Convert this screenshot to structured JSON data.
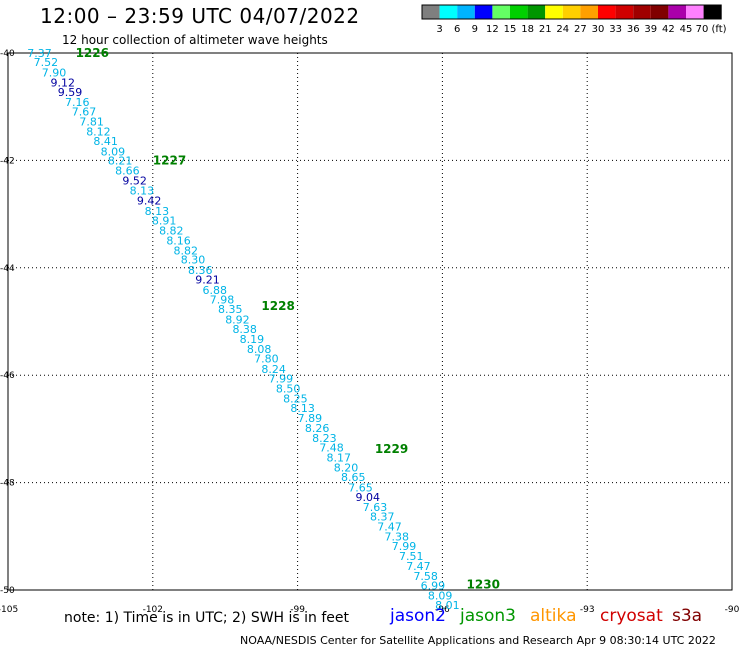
{
  "header": {
    "title": "12:00 – 23:59 UTC 04/07/2022",
    "subtitle": "12 hour collection of altimeter wave heights"
  },
  "colorbar": {
    "labels": [
      "3",
      "6",
      "9",
      "12",
      "15",
      "18",
      "21",
      "24",
      "27",
      "30",
      "33",
      "36",
      "39",
      "42",
      "45",
      "70 (ft)"
    ],
    "colors": [
      "#7f7f7f",
      "#00ffff",
      "#00b4ff",
      "#0000ff",
      "#64ff64",
      "#00d000",
      "#009600",
      "#ffff00",
      "#ffd000",
      "#ffa000",
      "#ff0000",
      "#d00000",
      "#a00000",
      "#800000",
      "#aa00aa",
      "#ff80ff",
      "#000000"
    ]
  },
  "axes": {
    "lon_ticks": [
      {
        "lon": -105,
        "label": "-105"
      },
      {
        "lon": -102,
        "label": "-102"
      },
      {
        "lon": -99,
        "label": "-99"
      },
      {
        "lon": -96,
        "label": "-96"
      },
      {
        "lon": -93,
        "label": "-93"
      },
      {
        "lon": -90,
        "label": "-90"
      }
    ],
    "lat_ticks": [
      {
        "lat": -40,
        "label": "-40"
      },
      {
        "lat": -42,
        "label": "-42"
      },
      {
        "lat": -44,
        "label": "-44"
      },
      {
        "lat": -46,
        "label": "-46"
      },
      {
        "lat": -48,
        "label": "-48"
      },
      {
        "lat": -50,
        "label": "-50"
      }
    ]
  },
  "track": {
    "colors": {
      "cyan": "#00b4e6",
      "blue": "#0000a0",
      "time": "#008000"
    },
    "observations": [
      {
        "lon": -104.6,
        "lat": -40.0,
        "value": "7.37",
        "cls": "cyan"
      },
      {
        "lon": -104.47,
        "lat": -40.17,
        "value": "7.52",
        "cls": "cyan"
      },
      {
        "lon": -104.3,
        "lat": -40.36,
        "value": "7.90",
        "cls": "cyan"
      },
      {
        "lon": -104.12,
        "lat": -40.55,
        "value": "9.12",
        "cls": "blue"
      },
      {
        "lon": -103.97,
        "lat": -40.73,
        "value": "9.59",
        "cls": "blue"
      },
      {
        "lon": -103.82,
        "lat": -40.91,
        "value": "7.16",
        "cls": "cyan"
      },
      {
        "lon": -103.68,
        "lat": -41.09,
        "value": "7.67",
        "cls": "cyan"
      },
      {
        "lon": -103.52,
        "lat": -41.28,
        "value": "7.81",
        "cls": "cyan"
      },
      {
        "lon": -103.38,
        "lat": -41.46,
        "value": "8.12",
        "cls": "cyan"
      },
      {
        "lon": -103.23,
        "lat": -41.64,
        "value": "8.41",
        "cls": "cyan"
      },
      {
        "lon": -103.08,
        "lat": -41.83,
        "value": "8.09",
        "cls": "cyan"
      },
      {
        "lon": -102.93,
        "lat": -42.0,
        "value": "8.21",
        "cls": "cyan"
      },
      {
        "lon": -102.78,
        "lat": -42.19,
        "value": "8.66",
        "cls": "cyan"
      },
      {
        "lon": -102.63,
        "lat": -42.37,
        "value": "9.52",
        "cls": "blue"
      },
      {
        "lon": -102.48,
        "lat": -42.56,
        "value": "8.13",
        "cls": "cyan"
      },
      {
        "lon": -102.33,
        "lat": -42.75,
        "value": "9.42",
        "cls": "blue"
      },
      {
        "lon": -102.17,
        "lat": -42.94,
        "value": "8.13",
        "cls": "cyan"
      },
      {
        "lon": -102.02,
        "lat": -43.12,
        "value": "8.91",
        "cls": "cyan"
      },
      {
        "lon": -101.87,
        "lat": -43.31,
        "value": "8.82",
        "cls": "cyan"
      },
      {
        "lon": -101.72,
        "lat": -43.49,
        "value": "8.16",
        "cls": "cyan"
      },
      {
        "lon": -101.57,
        "lat": -43.68,
        "value": "8.82",
        "cls": "cyan"
      },
      {
        "lon": -101.42,
        "lat": -43.85,
        "value": "8.30",
        "cls": "cyan"
      },
      {
        "lon": -101.27,
        "lat": -44.04,
        "value": "8.36",
        "cls": "cyan"
      },
      {
        "lon": -101.12,
        "lat": -44.22,
        "value": "9.21",
        "cls": "blue"
      },
      {
        "lon": -100.97,
        "lat": -44.41,
        "value": "6.88",
        "cls": "cyan"
      },
      {
        "lon": -100.82,
        "lat": -44.59,
        "value": "7.98",
        "cls": "cyan"
      },
      {
        "lon": -100.65,
        "lat": -44.77,
        "value": "8.35",
        "cls": "cyan"
      },
      {
        "lon": -100.5,
        "lat": -44.96,
        "value": "8.92",
        "cls": "cyan"
      },
      {
        "lon": -100.35,
        "lat": -45.14,
        "value": "8.38",
        "cls": "cyan"
      },
      {
        "lon": -100.2,
        "lat": -45.33,
        "value": "8.19",
        "cls": "cyan"
      },
      {
        "lon": -100.05,
        "lat": -45.51,
        "value": "8.08",
        "cls": "cyan"
      },
      {
        "lon": -99.9,
        "lat": -45.69,
        "value": "7.80",
        "cls": "cyan"
      },
      {
        "lon": -99.75,
        "lat": -45.88,
        "value": "8.24",
        "cls": "cyan"
      },
      {
        "lon": -99.6,
        "lat": -46.06,
        "value": "7.99",
        "cls": "cyan"
      },
      {
        "lon": -99.45,
        "lat": -46.25,
        "value": "8.50",
        "cls": "cyan"
      },
      {
        "lon": -99.3,
        "lat": -46.43,
        "value": "8.25",
        "cls": "cyan"
      },
      {
        "lon": -99.15,
        "lat": -46.61,
        "value": "8.13",
        "cls": "cyan"
      },
      {
        "lon": -99.0,
        "lat": -46.8,
        "value": "7.89",
        "cls": "cyan"
      },
      {
        "lon": -98.85,
        "lat": -46.98,
        "value": "8.26",
        "cls": "cyan"
      },
      {
        "lon": -98.7,
        "lat": -47.17,
        "value": "8.23",
        "cls": "cyan"
      },
      {
        "lon": -98.55,
        "lat": -47.35,
        "value": "7.48",
        "cls": "cyan"
      },
      {
        "lon": -98.4,
        "lat": -47.53,
        "value": "8.17",
        "cls": "cyan"
      },
      {
        "lon": -98.25,
        "lat": -47.72,
        "value": "8.20",
        "cls": "cyan"
      },
      {
        "lon": -98.1,
        "lat": -47.9,
        "value": "8.65",
        "cls": "cyan"
      },
      {
        "lon": -97.95,
        "lat": -48.09,
        "value": "7.65",
        "cls": "cyan"
      },
      {
        "lon": -97.8,
        "lat": -48.27,
        "value": "9.04",
        "cls": "blue"
      },
      {
        "lon": -97.65,
        "lat": -48.45,
        "value": "7.63",
        "cls": "cyan"
      },
      {
        "lon": -97.5,
        "lat": -48.63,
        "value": "8.37",
        "cls": "cyan"
      },
      {
        "lon": -97.35,
        "lat": -48.82,
        "value": "7.47",
        "cls": "cyan"
      },
      {
        "lon": -97.2,
        "lat": -49.0,
        "value": "7.38",
        "cls": "cyan"
      },
      {
        "lon": -97.05,
        "lat": -49.18,
        "value": "7.99",
        "cls": "cyan"
      },
      {
        "lon": -96.9,
        "lat": -49.37,
        "value": "7.51",
        "cls": "cyan"
      },
      {
        "lon": -96.75,
        "lat": -49.55,
        "value": "7.47",
        "cls": "cyan"
      },
      {
        "lon": -96.6,
        "lat": -49.74,
        "value": "7.58",
        "cls": "cyan"
      },
      {
        "lon": -96.45,
        "lat": -49.92,
        "value": "6.99",
        "cls": "cyan"
      },
      {
        "lon": -96.3,
        "lat": -50.1,
        "value": "8.09",
        "cls": "cyan"
      },
      {
        "lon": -96.15,
        "lat": -50.28,
        "value": "8.01",
        "cls": "cyan"
      }
    ],
    "times": [
      {
        "lon": -103.6,
        "lat": -40.0,
        "label": "1226"
      },
      {
        "lon": -102.0,
        "lat": -42.0,
        "label": "1227"
      },
      {
        "lon": -99.75,
        "lat": -44.71,
        "label": "1228"
      },
      {
        "lon": -97.4,
        "lat": -47.37,
        "label": "1229"
      },
      {
        "lon": -95.5,
        "lat": -49.9,
        "label": "1230"
      }
    ]
  },
  "footer": {
    "note": "note:  1) Time is in UTC;  2) SWH is in feet",
    "satellites": [
      {
        "label": "jason2",
        "color": "#0000ff"
      },
      {
        "label": "jason3",
        "color": "#009600"
      },
      {
        "label": "altika",
        "color": "#ff9600"
      },
      {
        "label": "cryosat",
        "color": "#d00000"
      },
      {
        "label": "s3a",
        "color": "#800000"
      }
    ],
    "credit": "NOAA/NESDIS Center for Satellite Applications and Research    Apr  9 08:30:14 UTC 2022"
  }
}
